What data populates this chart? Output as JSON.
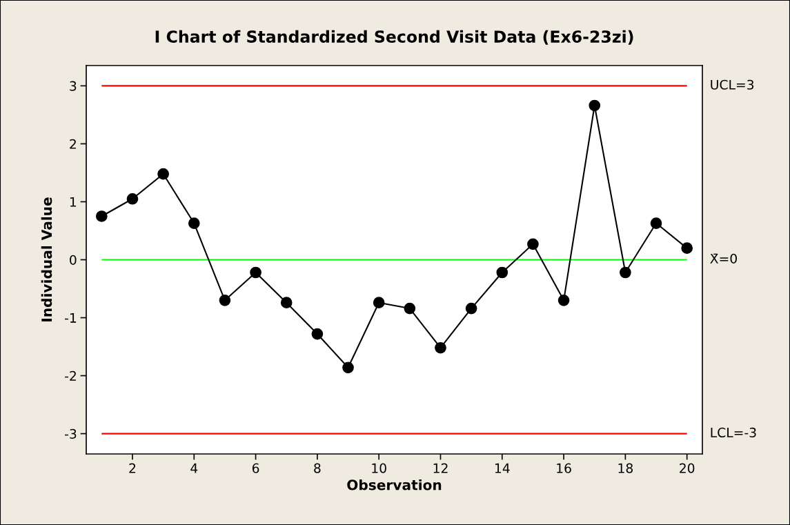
{
  "chart_data": {
    "type": "line",
    "title": "I Chart of Standardized Second Visit Data (Ex6-23zi)",
    "xlabel": "Observation",
    "ylabel": "Individual Value",
    "x": [
      1,
      2,
      3,
      4,
      5,
      6,
      7,
      8,
      9,
      10,
      11,
      12,
      13,
      14,
      15,
      16,
      17,
      18,
      19,
      20
    ],
    "series": [
      {
        "color": "#000000",
        "values": [
          0.75,
          1.05,
          1.48,
          0.63,
          -0.7,
          -0.22,
          -0.74,
          -1.28,
          -1.86,
          -0.74,
          -0.84,
          -1.52,
          -0.84,
          -0.22,
          0.27,
          -0.7,
          2.66,
          -0.22,
          0.63,
          0.2
        ]
      }
    ],
    "xlim": [
      0.5,
      20.5
    ],
    "ylim": [
      -3.35,
      3.35
    ],
    "xticks": [
      2,
      4,
      6,
      8,
      10,
      12,
      14,
      16,
      18,
      20
    ],
    "yticks": [
      -3,
      -2,
      -1,
      0,
      1,
      2,
      3
    ],
    "ref_lines": [
      {
        "axis": "y",
        "value": 3,
        "label": "UCL=3",
        "color": "#ff0000"
      },
      {
        "axis": "y",
        "value": 0,
        "label": "X̄=0",
        "color": "#00ff00"
      },
      {
        "axis": "y",
        "value": -3,
        "label": "LCL=-3",
        "color": "#ff0000"
      }
    ],
    "marker": "circle",
    "line_style": "solid",
    "grid": false
  }
}
